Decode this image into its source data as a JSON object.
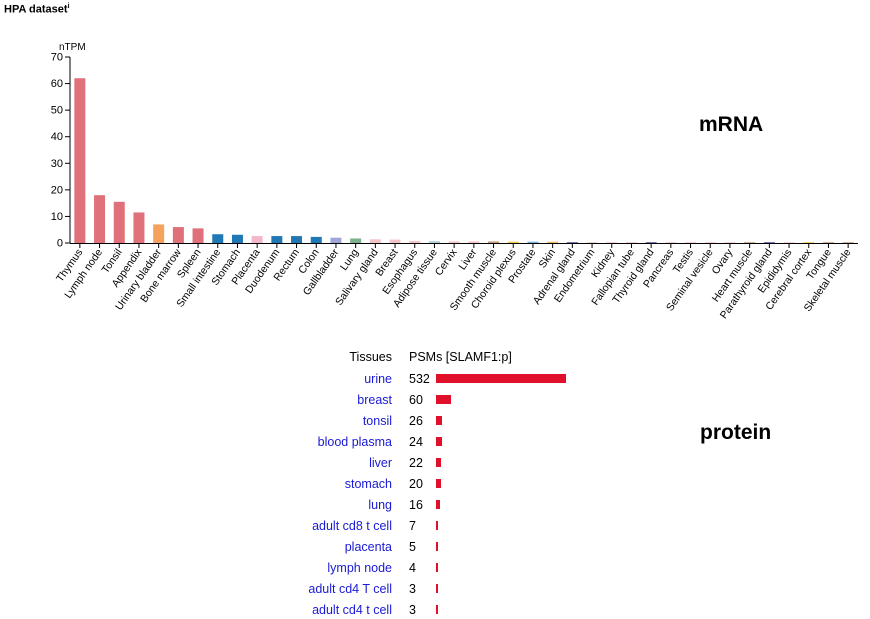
{
  "header": {
    "dataset_title": "HPA dataset",
    "info_mark": "i"
  },
  "labels": {
    "mrna": "mRNA",
    "protein": "protein"
  },
  "colors": {
    "lymphoid": "#e0707a",
    "bladder": "#f5a25d",
    "gi": "#1f77b4",
    "placenta": "#f4b6c9",
    "lung": "#a0a5d6",
    "gallbladder": "#7fb08c",
    "glandular": "#f2c4c8",
    "adipose": "#b0d0d6",
    "muscle": "#c69a7c",
    "brain": "#f2c94c",
    "prostate": "#7ab0d8",
    "skin": "#f4b86a",
    "endocrine": "#5b4f9e",
    "axis": "#000000",
    "protein_bar": "#e0102a",
    "link": "#1a1ad6"
  },
  "chart_data": [
    {
      "type": "bar",
      "ylabel": "nTPM",
      "ylim": [
        0,
        70
      ],
      "yticks": [
        0,
        10,
        20,
        30,
        40,
        50,
        60,
        70
      ],
      "categories": [
        "Thymus",
        "Lymph node",
        "Tonsil",
        "Appendix",
        "Urinary bladder",
        "Bone marrow",
        "Spleen",
        "Small intestine",
        "Stomach",
        "Placenta",
        "Duodenum",
        "Rectum",
        "Colon",
        "Gallbladder",
        "Lung",
        "Salivary gland",
        "Breast",
        "Esophagus",
        "Adipose tissue",
        "Cervix",
        "Liver",
        "Smooth muscle",
        "Choroid plexus",
        "Prostate",
        "Skin",
        "Adrenal gland",
        "Endometrium",
        "Kidney",
        "Fallopian tube",
        "Thyroid gland",
        "Pancreas",
        "Testis",
        "Seminal vesicle",
        "Ovary",
        "Heart muscle",
        "Parathyroid gland",
        "Epididymis",
        "Cerebral cortex",
        "Tongue",
        "Skeletal muscle"
      ],
      "values": [
        62,
        18,
        15.5,
        11.5,
        7,
        6,
        5.5,
        3.3,
        3.1,
        2.6,
        2.6,
        2.6,
        2.3,
        2.0,
        1.7,
        1.4,
        1.3,
        0.8,
        0.7,
        0.6,
        0.6,
        0.6,
        0.5,
        0.5,
        0.5,
        0.3,
        0.2,
        0.2,
        0.1,
        0.1,
        0.1,
        0.1,
        0.1,
        0.1,
        0.1,
        0.1,
        0.1,
        0.1,
        0.1,
        0.1
      ],
      "bar_colors": [
        "lymphoid",
        "lymphoid",
        "lymphoid",
        "lymphoid",
        "bladder",
        "lymphoid",
        "lymphoid",
        "gi",
        "gi",
        "placenta",
        "gi",
        "gi",
        "gi",
        "lung",
        "gallbladder",
        "glandular",
        "glandular",
        "glandular",
        "adipose",
        "glandular",
        "glandular",
        "muscle",
        "brain",
        "prostate",
        "skin",
        "endocrine",
        "glandular",
        "glandular",
        "glandular",
        "endocrine",
        "glandular",
        "glandular",
        "glandular",
        "glandular",
        "muscle",
        "endocrine",
        "glandular",
        "brain",
        "muscle",
        "muscle"
      ]
    },
    {
      "type": "table",
      "columns": [
        "Tissues",
        "PSMs [SLAMF1:p]"
      ],
      "rows": [
        {
          "tissue": "urine",
          "psms": 532
        },
        {
          "tissue": "breast",
          "psms": 60
        },
        {
          "tissue": "tonsil",
          "psms": 26
        },
        {
          "tissue": "blood plasma",
          "psms": 24
        },
        {
          "tissue": "liver",
          "psms": 22
        },
        {
          "tissue": "stomach",
          "psms": 20
        },
        {
          "tissue": "lung",
          "psms": 16
        },
        {
          "tissue": "adult cd8 t cell",
          "psms": 7
        },
        {
          "tissue": "placenta",
          "psms": 5
        },
        {
          "tissue": "lymph node",
          "psms": 4
        },
        {
          "tissue": "adult cd4 T cell",
          "psms": 3
        },
        {
          "tissue": "adult cd4 t cell",
          "psms": 3
        }
      ],
      "max_psm": 532
    }
  ]
}
